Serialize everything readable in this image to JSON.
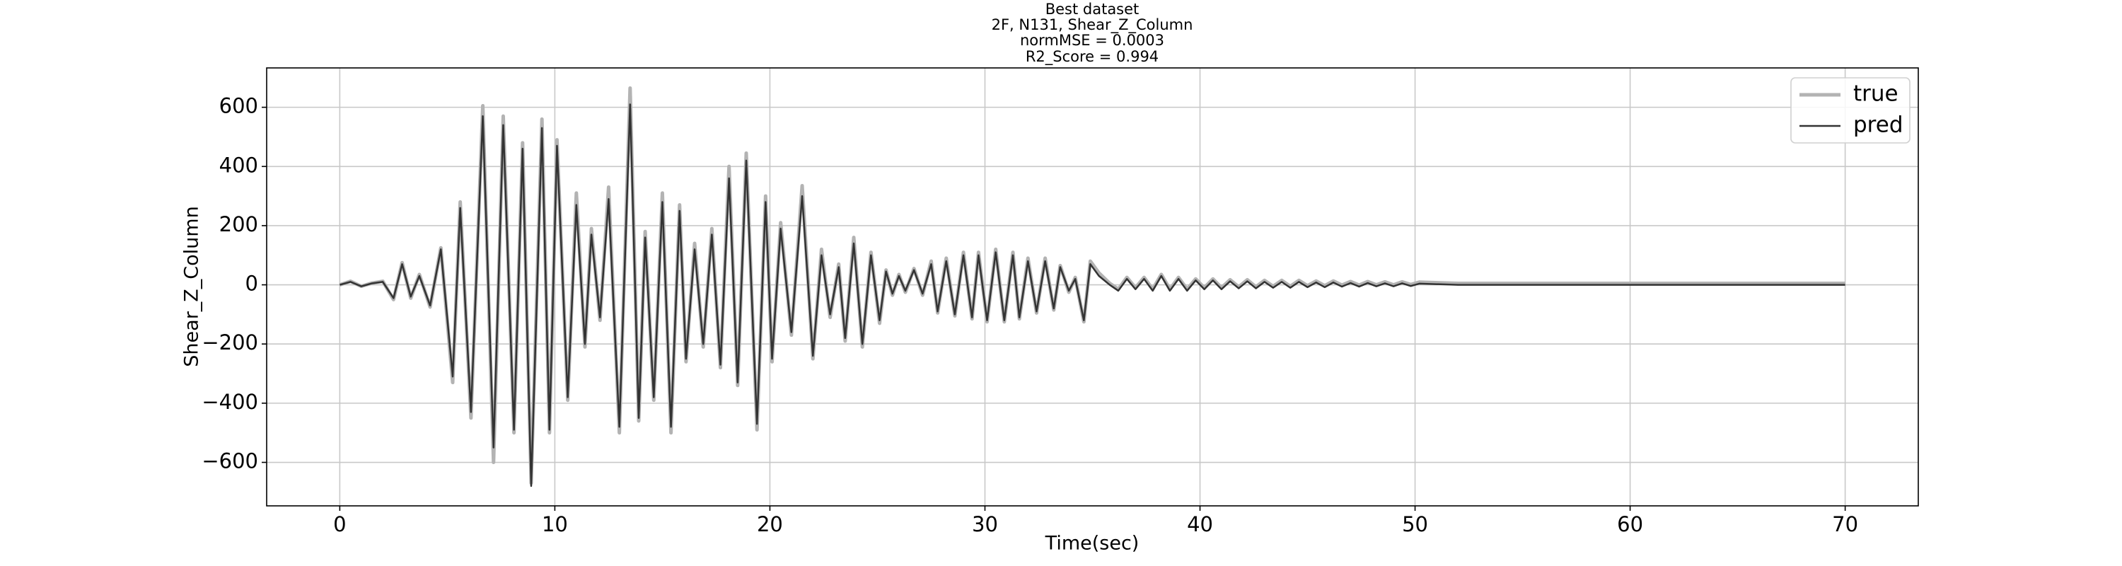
{
  "chart_data": {
    "type": "line",
    "title": "Best dataset",
    "subtitle": [
      "2F, N131, Shear_Z_Column",
      "normMSE = 0.0003",
      "R2_Score = 0.994"
    ],
    "xlabel": "Time(sec)",
    "ylabel": "Shear_Z_Column",
    "grid": true,
    "legend": "upper right",
    "xlim": [
      -3.4,
      73.4
    ],
    "ylim": [
      -747,
      733
    ],
    "xticks": [
      0,
      10,
      20,
      30,
      40,
      50,
      60,
      70
    ],
    "yticks": [
      {
        "value": -600,
        "label": "−600"
      },
      {
        "value": -400,
        "label": "−400"
      },
      {
        "value": -200,
        "label": "−200"
      },
      0,
      200,
      400,
      600
    ],
    "x": [
      0,
      0.5,
      1,
      1.5,
      2,
      2.5,
      2.9,
      3.3,
      3.7,
      4.2,
      4.7,
      5.25,
      5.6,
      6.1,
      6.65,
      7.15,
      7.6,
      8.1,
      8.5,
      8.9,
      9.4,
      9.75,
      10.1,
      10.6,
      11.0,
      11.4,
      11.7,
      12.1,
      12.5,
      13.0,
      13.5,
      13.9,
      14.2,
      14.6,
      15.0,
      15.4,
      15.8,
      16.1,
      16.5,
      16.9,
      17.3,
      17.7,
      18.1,
      18.5,
      18.9,
      19.4,
      19.8,
      20.1,
      20.5,
      21.0,
      21.5,
      22.0,
      22.4,
      22.8,
      23.2,
      23.5,
      23.9,
      24.3,
      24.7,
      25.1,
      25.4,
      25.7,
      26.0,
      26.3,
      26.7,
      27.1,
      27.5,
      27.8,
      28.2,
      28.6,
      29.0,
      29.4,
      29.7,
      30.1,
      30.5,
      30.9,
      31.3,
      31.6,
      32.0,
      32.4,
      32.8,
      33.2,
      33.5,
      33.9,
      34.2,
      34.6,
      34.9,
      35.3,
      35.8,
      36.2,
      36.6,
      37.0,
      37.4,
      37.8,
      38.2,
      38.6,
      39.0,
      39.4,
      39.8,
      40.2,
      40.6,
      41.0,
      41.4,
      41.8,
      42.2,
      42.6,
      43.0,
      43.4,
      43.8,
      44.2,
      44.6,
      45.0,
      45.4,
      45.8,
      46.2,
      46.6,
      47.0,
      47.4,
      47.8,
      48.2,
      48.6,
      49.0,
      49.4,
      49.8,
      50.2,
      52,
      55,
      60,
      65,
      70
    ],
    "series": [
      {
        "name": "true",
        "color": "#b3b3b3",
        "width": 5,
        "values": [
          0,
          12,
          -5,
          6,
          12,
          -50,
          75,
          -45,
          35,
          -75,
          125,
          -330,
          280,
          -450,
          605,
          -600,
          570,
          -500,
          480,
          -670,
          560,
          -500,
          490,
          -390,
          310,
          -210,
          190,
          -120,
          330,
          -500,
          665,
          -460,
          180,
          -390,
          310,
          -500,
          270,
          -260,
          140,
          -210,
          190,
          -280,
          400,
          -340,
          445,
          -490,
          300,
          -260,
          210,
          -170,
          335,
          -250,
          120,
          -110,
          70,
          -190,
          160,
          -210,
          110,
          -130,
          50,
          -35,
          35,
          -25,
          55,
          -35,
          80,
          -95,
          90,
          -105,
          110,
          -115,
          110,
          -125,
          120,
          -125,
          110,
          -115,
          90,
          -95,
          90,
          -85,
          65,
          -25,
          25,
          -125,
          80,
          40,
          5,
          -15,
          25,
          -10,
          25,
          -15,
          35,
          -15,
          25,
          -15,
          20,
          -10,
          20,
          -10,
          17,
          -7,
          17,
          -7,
          15,
          -5,
          15,
          -5,
          15,
          -3,
          13,
          -3,
          13,
          -1,
          11,
          -1,
          11,
          0,
          10,
          0,
          10,
          1,
          9,
          5,
          5,
          5,
          5,
          5
        ]
      },
      {
        "name": "pred",
        "color": "#333333",
        "width": 2.5,
        "values": [
          0,
          10,
          -5,
          5,
          10,
          -45,
          70,
          -40,
          30,
          -70,
          120,
          -310,
          260,
          -430,
          570,
          -550,
          540,
          -490,
          460,
          -680,
          530,
          -490,
          470,
          -380,
          270,
          -200,
          170,
          -110,
          290,
          -480,
          610,
          -450,
          160,
          -380,
          280,
          -480,
          250,
          -250,
          120,
          -200,
          170,
          -270,
          360,
          -330,
          420,
          -470,
          280,
          -250,
          190,
          -160,
          300,
          -240,
          100,
          -100,
          60,
          -180,
          140,
          -200,
          100,
          -120,
          45,
          -30,
          30,
          -20,
          50,
          -30,
          70,
          -90,
          80,
          -100,
          100,
          -110,
          100,
          -120,
          110,
          -120,
          100,
          -110,
          80,
          -90,
          80,
          -80,
          60,
          -20,
          20,
          -120,
          70,
          30,
          0,
          -20,
          20,
          -15,
          20,
          -20,
          30,
          -20,
          20,
          -20,
          15,
          -15,
          15,
          -15,
          12,
          -12,
          12,
          -12,
          10,
          -10,
          10,
          -10,
          10,
          -8,
          8,
          -8,
          8,
          -6,
          6,
          -6,
          6,
          -5,
          5,
          -5,
          5,
          -4,
          4,
          0,
          0,
          0,
          0,
          0
        ]
      }
    ]
  }
}
